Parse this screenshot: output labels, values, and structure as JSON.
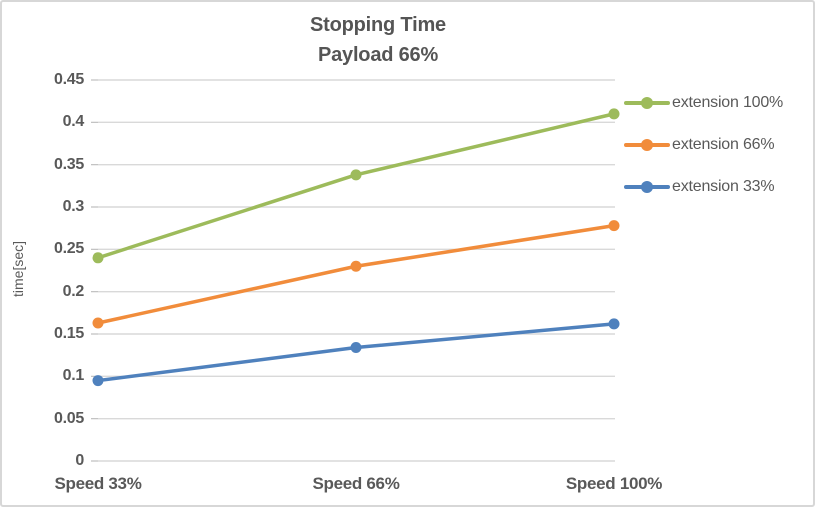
{
  "window": {
    "background": "#ffffff",
    "border_color": "#d7d7d7"
  },
  "chart_data": {
    "type": "line",
    "title": "Stopping Time",
    "subtitle": "Payload 66%",
    "xlabel": "",
    "ylabel": "time[sec]",
    "categories": [
      "Speed 33%",
      "Speed 66%",
      "Speed 100%"
    ],
    "series": [
      {
        "name": "extension 100%",
        "color": "#9dbb5b",
        "values": [
          0.24,
          0.338,
          0.41
        ]
      },
      {
        "name": "extension 66%",
        "color": "#f18c3b",
        "values": [
          0.163,
          0.23,
          0.278
        ]
      },
      {
        "name": "extension 33%",
        "color": "#4f81bd",
        "values": [
          0.095,
          0.134,
          0.162
        ]
      }
    ],
    "ylim": [
      0,
      0.45
    ],
    "ytick_step": 0.05,
    "ytick_labels": [
      "0",
      "0.05",
      "0.1",
      "0.15",
      "0.2",
      "0.25",
      "0.3",
      "0.35",
      "0.4",
      "0.45"
    ],
    "grid": true,
    "legend_position": "right",
    "marker": "circle"
  },
  "style_colors": {
    "gridline": "#d9d9d9",
    "tick_mark": "#bfbfbf",
    "label_text": "#595959",
    "title_text": "#555555"
  }
}
